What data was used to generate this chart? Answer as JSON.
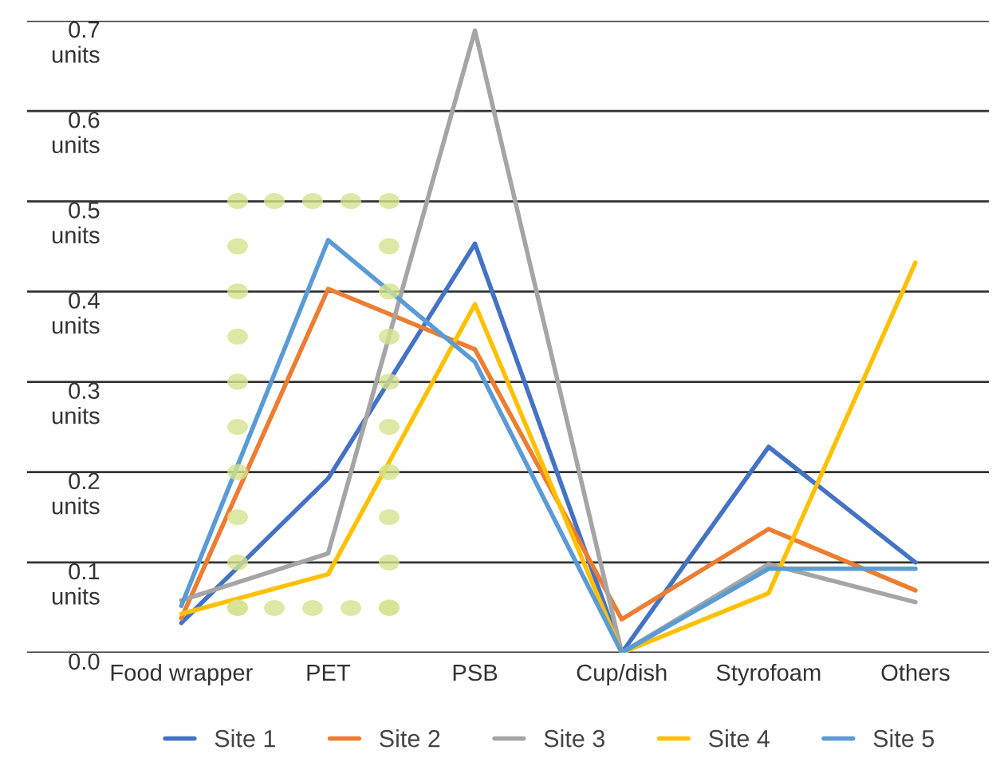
{
  "chart_data": {
    "type": "line",
    "categories": [
      "Food wrapper",
      "PET",
      "PSB",
      "Cup/dish",
      "Styrofoam",
      "Others"
    ],
    "series": [
      {
        "name": "Site 1",
        "color": "#4472c4",
        "values": [
          0.033,
          0.193,
          0.453,
          0.0,
          0.228,
          0.1
        ]
      },
      {
        "name": "Site 2",
        "color": "#ed7d31",
        "values": [
          0.038,
          0.403,
          0.336,
          0.037,
          0.137,
          0.069
        ]
      },
      {
        "name": "Site 3",
        "color": "#a5a5a5",
        "values": [
          0.058,
          0.11,
          0.689,
          0.0,
          0.098,
          0.056
        ]
      },
      {
        "name": "Site 4",
        "color": "#ffc000",
        "values": [
          0.043,
          0.087,
          0.386,
          0.0,
          0.066,
          0.432
        ]
      },
      {
        "name": "Site 5",
        "color": "#5b9bd5",
        "values": [
          0.052,
          0.457,
          0.322,
          0.0,
          0.093,
          0.093
        ]
      }
    ],
    "ylim": [
      0,
      0.7
    ],
    "yticks": [
      {
        "value": 0,
        "label": "0.0"
      },
      {
        "value": 0.1,
        "label": "0.1\nunits"
      },
      {
        "value": 0.2,
        "label": "0.2\nunits"
      },
      {
        "value": 0.3,
        "label": "0.3\nunits"
      },
      {
        "value": 0.4,
        "label": "0.4\nunits"
      },
      {
        "value": 0.5,
        "label": "0.5\nunits"
      },
      {
        "value": 0.6,
        "label": "0.6\nunits"
      },
      {
        "value": 0.7,
        "label": "0.7\nunits"
      }
    ],
    "grid": "y",
    "legend": "bottom"
  }
}
